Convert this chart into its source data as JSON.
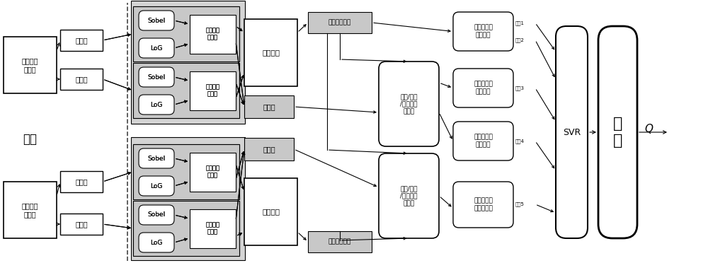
{
  "bg_color": "#ffffff",
  "text_color": "#000000",
  "gray_fill": "#c8c8c8",
  "white_fill": "#ffffff",
  "light_gray": "#e8e8e8",
  "ref_img": "参考立体\n图像对",
  "dist_img": "失真立体\n图像对",
  "left_view": "左视图",
  "right_view": "右视图",
  "sobel": "Sobel",
  "log": "LoG",
  "joint_stat": "联合统计\n梯度图",
  "binocular": "双目融合",
  "disparity": "视差图",
  "ref_mid": "中间参考图像",
  "dist_mid": "中间失真图像",
  "feat_extract": "边缘/纹理\n/对比度特\n征提取",
  "depth_sim": "深度信息相\n似性测量",
  "edge_sim": "边缘信息相\n似性测量",
  "texture_sim": "纹理信息相\n似性测量",
  "contrast_sim": "对比度信息\n相似性测量",
  "svr": "SVR",
  "output": "输\n出",
  "q": "Q",
  "input_label": "输入",
  "ind1": "指标1",
  "ind2": "指标2",
  "ind3": "指标3",
  "ind4": "指标4",
  "ind5": "指标5"
}
